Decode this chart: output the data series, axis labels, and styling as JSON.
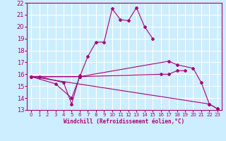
{
  "xlabel": "Windchill (Refroidissement éolien,°C)",
  "ylabel": "",
  "bg_color": "#cceeff",
  "grid_color": "#ffffff",
  "line_color": "#aa0077",
  "xlim": [
    -0.5,
    23.5
  ],
  "ylim": [
    13,
    22
  ],
  "xticks": [
    0,
    1,
    2,
    3,
    4,
    5,
    6,
    7,
    8,
    9,
    10,
    11,
    12,
    13,
    14,
    15,
    16,
    17,
    18,
    19,
    20,
    21,
    22,
    23
  ],
  "yticks": [
    13,
    14,
    15,
    16,
    17,
    18,
    19,
    20,
    21,
    22
  ],
  "series": [
    {
      "x": [
        0,
        1,
        4,
        5,
        6
      ],
      "y": [
        15.8,
        15.8,
        15.3,
        13.5,
        15.9
      ]
    },
    {
      "x": [
        0,
        3,
        5,
        6,
        7,
        8,
        9,
        10,
        11,
        12,
        13,
        14,
        15
      ],
      "y": [
        15.8,
        15.2,
        14.0,
        15.8,
        17.5,
        18.7,
        18.7,
        21.5,
        20.6,
        20.5,
        21.6,
        20.0,
        19.0
      ]
    },
    {
      "x": [
        0,
        6,
        16,
        17,
        18,
        19
      ],
      "y": [
        15.8,
        15.8,
        16.0,
        16.0,
        16.3,
        16.3
      ]
    },
    {
      "x": [
        0,
        6,
        17,
        18,
        20,
        21,
        22,
        23
      ],
      "y": [
        15.8,
        15.8,
        17.1,
        16.8,
        16.5,
        15.3,
        13.5,
        13.1
      ]
    },
    {
      "x": [
        0,
        22,
        23
      ],
      "y": [
        15.8,
        13.5,
        13.1
      ]
    }
  ]
}
